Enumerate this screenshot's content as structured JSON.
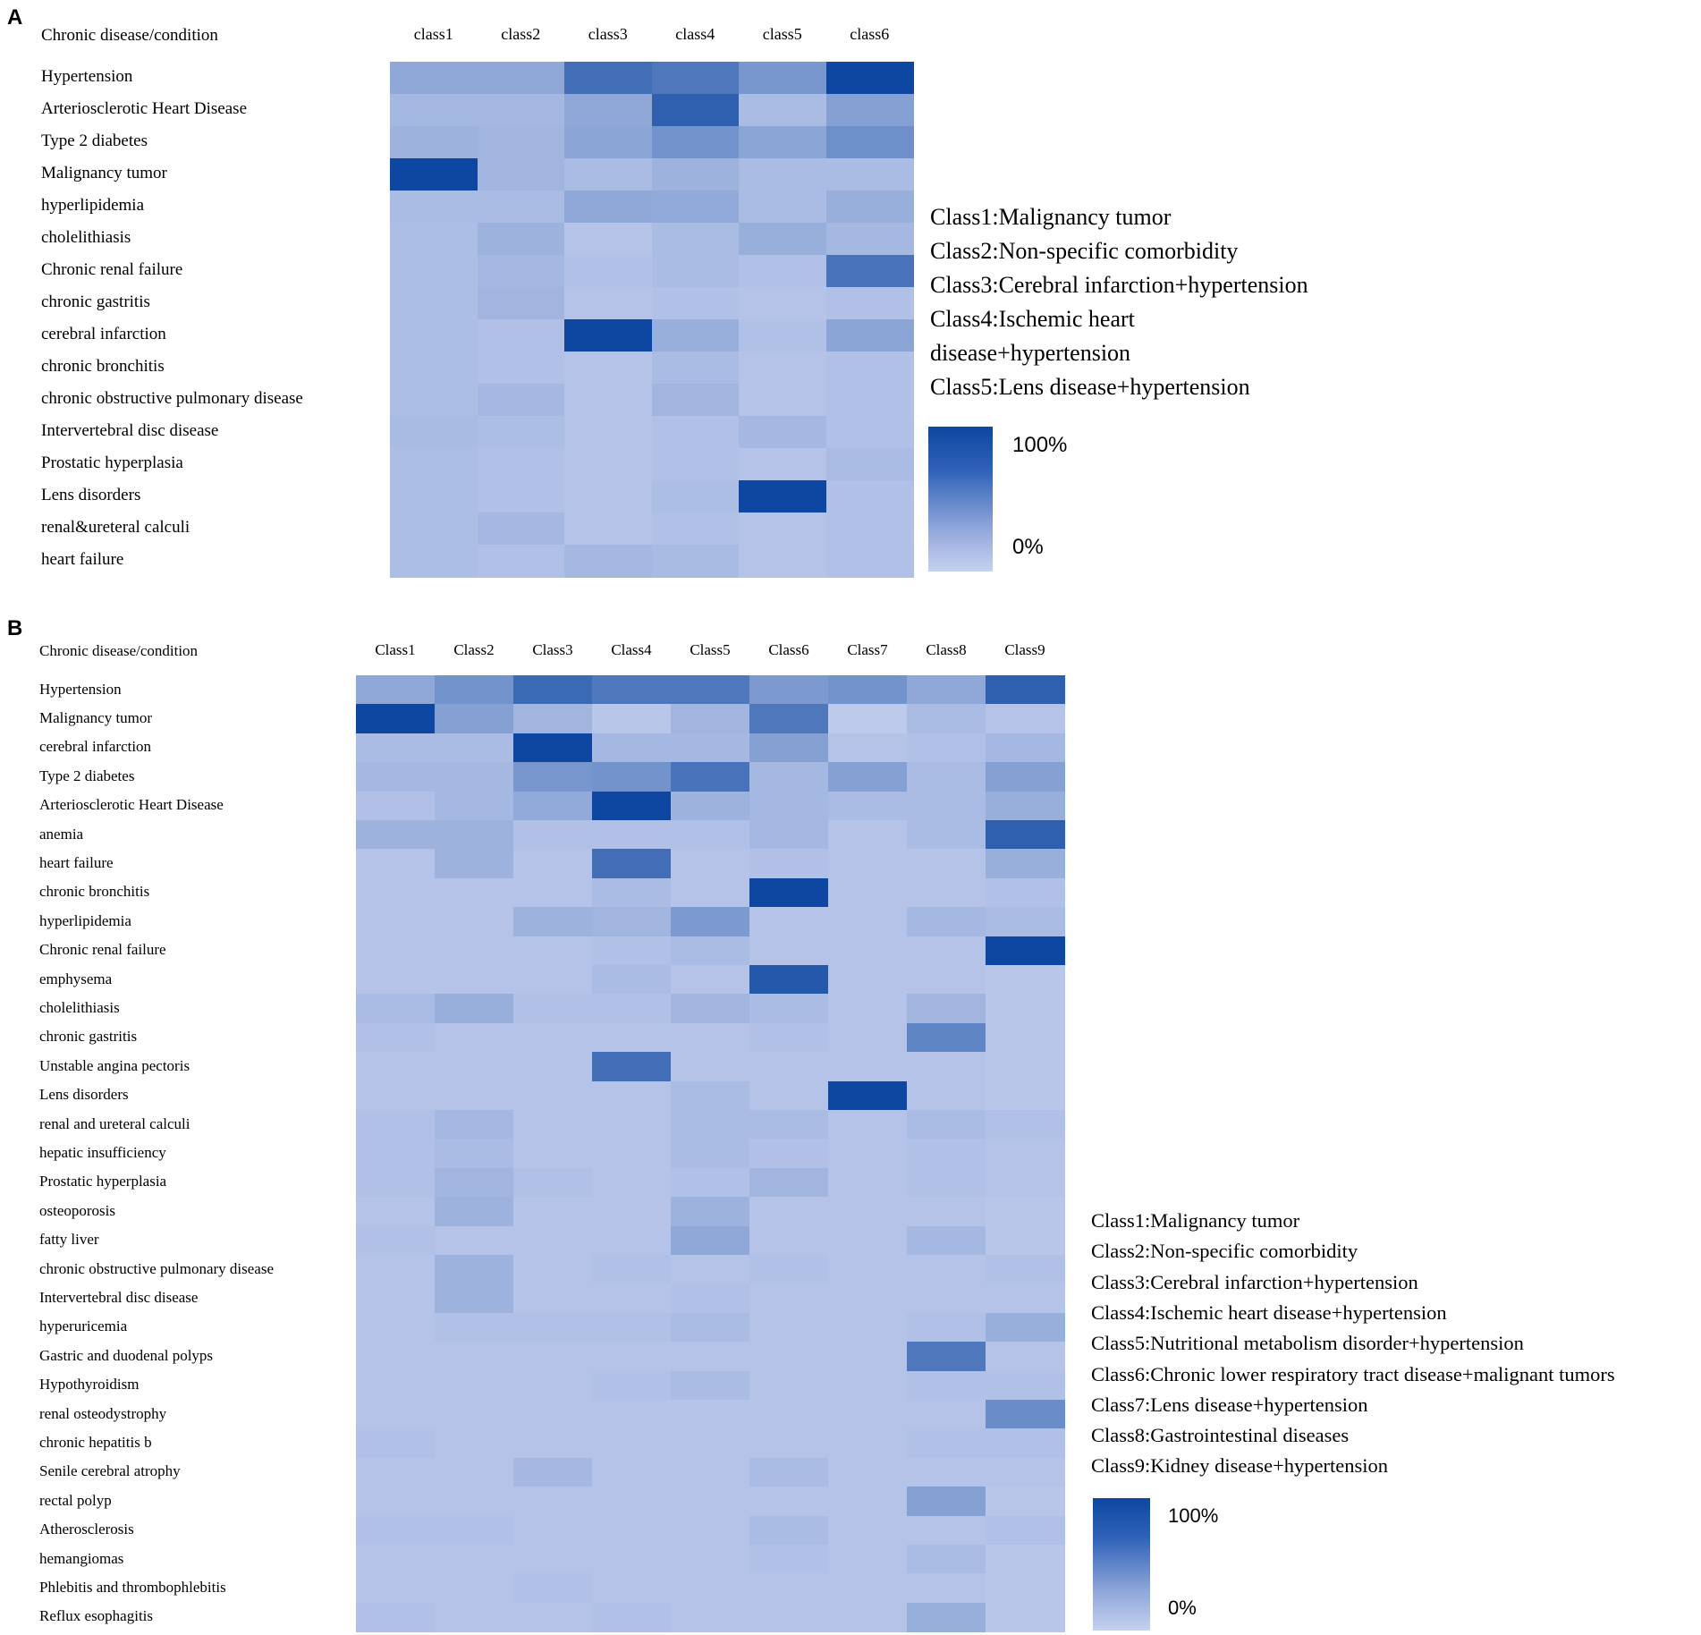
{
  "chart_data": [
    {
      "type": "heatmap",
      "panel_label": "A",
      "title": "Chronic disease/condition",
      "columns": [
        "class1",
        "class2",
        "class3",
        "class4",
        "class5",
        "class6"
      ],
      "rows": [
        "Hypertension",
        "Arteriosclerotic Heart Disease",
        "Type 2 diabetes",
        "Malignancy tumor",
        "hyperlipidemia",
        "cholelithiasis",
        "Chronic renal failure",
        "chronic gastritis",
        "cerebral infarction",
        "chronic bronchitis",
        "chronic obstructive pulmonary disease",
        "Intervertebral disc disease",
        "Prostatic hyperplasia",
        "Lens disorders",
        "renal&ureteral calculi",
        "heart failure"
      ],
      "values": [
        [
          0.3,
          0.3,
          0.72,
          0.65,
          0.42,
          1.0
        ],
        [
          0.18,
          0.18,
          0.3,
          0.82,
          0.15,
          0.35
        ],
        [
          0.22,
          0.2,
          0.32,
          0.45,
          0.32,
          0.48
        ],
        [
          1.0,
          0.2,
          0.15,
          0.22,
          0.15,
          0.15
        ],
        [
          0.15,
          0.15,
          0.3,
          0.28,
          0.15,
          0.25
        ],
        [
          0.14,
          0.22,
          0.1,
          0.15,
          0.25,
          0.18
        ],
        [
          0.14,
          0.18,
          0.12,
          0.15,
          0.12,
          0.68
        ],
        [
          0.14,
          0.2,
          0.1,
          0.12,
          0.1,
          0.12
        ],
        [
          0.14,
          0.12,
          1.0,
          0.25,
          0.12,
          0.32
        ],
        [
          0.14,
          0.12,
          0.1,
          0.15,
          0.1,
          0.12
        ],
        [
          0.14,
          0.18,
          0.1,
          0.2,
          0.1,
          0.12
        ],
        [
          0.16,
          0.14,
          0.1,
          0.12,
          0.18,
          0.12
        ],
        [
          0.14,
          0.12,
          0.1,
          0.12,
          0.1,
          0.15
        ],
        [
          0.14,
          0.12,
          0.1,
          0.14,
          1.0,
          0.12
        ],
        [
          0.14,
          0.18,
          0.1,
          0.12,
          0.1,
          0.12
        ],
        [
          0.14,
          0.12,
          0.18,
          0.16,
          0.1,
          0.12
        ]
      ],
      "legend": [
        "Class1:Malignancy tumor",
        "Class2:Non-specific comorbidity",
        "Class3:Cerebral infarction+hypertension",
        "Class4:Ischemic heart",
        "disease+hypertension",
        "Class5:Lens disease+hypertension"
      ],
      "colorbar": {
        "max_label": "100%",
        "min_label": "0%",
        "high_color": "#0d47a1",
        "low_color": "#c6d1ef"
      }
    },
    {
      "type": "heatmap",
      "panel_label": "B",
      "title": "Chronic disease/condition",
      "columns": [
        "Class1",
        "Class2",
        "Class3",
        "Class4",
        "Class5",
        "Class6",
        "Class7",
        "Class8",
        "Class9"
      ],
      "rows": [
        "Hypertension",
        "Malignancy tumor",
        "cerebral infarction",
        "Type 2 diabetes",
        "Arteriosclerotic Heart Disease",
        "anemia",
        "heart failure",
        "chronic bronchitis",
        "hyperlipidemia",
        "Chronic renal failure",
        "emphysema",
        "cholelithiasis",
        "chronic gastritis",
        "Unstable angina pectoris",
        "Lens disorders",
        "renal and ureteral calculi",
        "hepatic insufficiency",
        "Prostatic hyperplasia",
        "osteoporosis",
        "fatty liver",
        "chronic obstructive pulmonary disease",
        "Intervertebral disc disease",
        "hyperuricemia",
        "Gastric and duodenal polyps",
        "Hypothyroidism",
        "renal osteodystrophy",
        "chronic hepatitis b",
        "Senile cerebral atrophy",
        "rectal polyp",
        "Atherosclerosis",
        "hemangiomas",
        "Phlebitis and thrombophlebitis",
        "Reflux esophagitis"
      ],
      "values": [
        [
          0.3,
          0.45,
          0.75,
          0.65,
          0.65,
          0.4,
          0.45,
          0.3,
          0.82
        ],
        [
          1.0,
          0.35,
          0.2,
          0.08,
          0.2,
          0.65,
          0.05,
          0.15,
          0.1
        ],
        [
          0.15,
          0.15,
          1.0,
          0.18,
          0.18,
          0.35,
          0.1,
          0.12,
          0.18
        ],
        [
          0.18,
          0.18,
          0.42,
          0.45,
          0.68,
          0.18,
          0.35,
          0.15,
          0.35
        ],
        [
          0.12,
          0.18,
          0.28,
          1.0,
          0.22,
          0.18,
          0.15,
          0.15,
          0.25
        ],
        [
          0.22,
          0.22,
          0.12,
          0.12,
          0.12,
          0.18,
          0.1,
          0.15,
          0.82
        ],
        [
          0.1,
          0.22,
          0.1,
          0.72,
          0.1,
          0.12,
          0.1,
          0.1,
          0.25
        ],
        [
          0.1,
          0.1,
          0.1,
          0.15,
          0.1,
          1.0,
          0.1,
          0.1,
          0.12
        ],
        [
          0.1,
          0.1,
          0.22,
          0.2,
          0.4,
          0.1,
          0.1,
          0.18,
          0.15
        ],
        [
          0.1,
          0.1,
          0.1,
          0.12,
          0.15,
          0.1,
          0.1,
          0.1,
          1.0
        ],
        [
          0.1,
          0.1,
          0.1,
          0.15,
          0.1,
          0.88,
          0.1,
          0.1,
          0.08
        ],
        [
          0.15,
          0.25,
          0.12,
          0.12,
          0.2,
          0.15,
          0.1,
          0.2,
          0.08
        ],
        [
          0.12,
          0.1,
          0.1,
          0.1,
          0.1,
          0.12,
          0.1,
          0.55,
          0.08
        ],
        [
          0.1,
          0.1,
          0.1,
          0.72,
          0.1,
          0.1,
          0.1,
          0.1,
          0.08
        ],
        [
          0.1,
          0.1,
          0.1,
          0.1,
          0.15,
          0.1,
          1.0,
          0.1,
          0.08
        ],
        [
          0.12,
          0.18,
          0.1,
          0.1,
          0.15,
          0.15,
          0.1,
          0.15,
          0.12
        ],
        [
          0.12,
          0.15,
          0.1,
          0.1,
          0.15,
          0.12,
          0.1,
          0.12,
          0.1
        ],
        [
          0.12,
          0.2,
          0.12,
          0.1,
          0.12,
          0.2,
          0.1,
          0.12,
          0.1
        ],
        [
          0.1,
          0.22,
          0.1,
          0.1,
          0.22,
          0.1,
          0.1,
          0.1,
          0.08
        ],
        [
          0.12,
          0.1,
          0.1,
          0.1,
          0.3,
          0.1,
          0.1,
          0.18,
          0.08
        ],
        [
          0.1,
          0.22,
          0.1,
          0.12,
          0.1,
          0.12,
          0.1,
          0.1,
          0.12
        ],
        [
          0.1,
          0.22,
          0.1,
          0.1,
          0.12,
          0.1,
          0.1,
          0.1,
          0.1
        ],
        [
          0.1,
          0.12,
          0.12,
          0.12,
          0.15,
          0.1,
          0.1,
          0.12,
          0.25
        ],
        [
          0.1,
          0.1,
          0.1,
          0.1,
          0.1,
          0.1,
          0.1,
          0.65,
          0.1
        ],
        [
          0.1,
          0.1,
          0.1,
          0.12,
          0.15,
          0.1,
          0.1,
          0.12,
          0.12
        ],
        [
          0.1,
          0.1,
          0.1,
          0.1,
          0.1,
          0.1,
          0.1,
          0.1,
          0.5
        ],
        [
          0.12,
          0.1,
          0.1,
          0.1,
          0.1,
          0.1,
          0.1,
          0.12,
          0.12
        ],
        [
          0.1,
          0.1,
          0.18,
          0.1,
          0.1,
          0.15,
          0.1,
          0.1,
          0.1
        ],
        [
          0.1,
          0.1,
          0.1,
          0.1,
          0.1,
          0.1,
          0.1,
          0.35,
          0.08
        ],
        [
          0.12,
          0.12,
          0.1,
          0.1,
          0.1,
          0.15,
          0.1,
          0.1,
          0.12
        ],
        [
          0.1,
          0.1,
          0.1,
          0.1,
          0.1,
          0.12,
          0.1,
          0.15,
          0.08
        ],
        [
          0.1,
          0.1,
          0.12,
          0.1,
          0.1,
          0.1,
          0.1,
          0.1,
          0.08
        ],
        [
          0.12,
          0.1,
          0.1,
          0.12,
          0.1,
          0.1,
          0.1,
          0.25,
          0.08
        ]
      ],
      "legend": [
        "Class1:Malignancy tumor",
        "Class2:Non-specific comorbidity",
        "Class3:Cerebral infarction+hypertension",
        "Class4:Ischemic heart disease+hypertension",
        "Class5:Nutritional metabolism disorder+hypertension",
        "Class6:Chronic lower respiratory tract disease+malignant tumors",
        "Class7:Lens disease+hypertension",
        "Class8:Gastrointestinal diseases",
        "Class9:Kidney disease+hypertension"
      ],
      "colorbar": {
        "max_label": "100%",
        "min_label": "0%",
        "high_color": "#0d47a1",
        "low_color": "#c6d1ef"
      }
    }
  ]
}
